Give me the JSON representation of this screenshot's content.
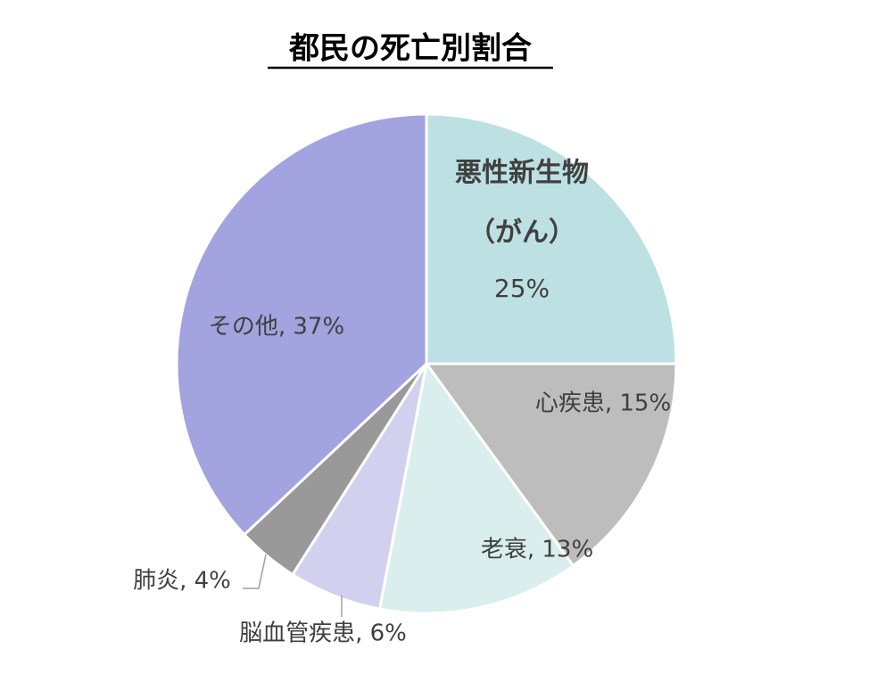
{
  "chart_data": {
    "type": "pie",
    "title": "都民の死亡別割合",
    "values": [
      25,
      15,
      13,
      6,
      4,
      37
    ],
    "labels": [
      [
        "悪性新生物",
        "（がん）",
        "25%"
      ],
      [
        "心疾患, 15%"
      ],
      [
        "老衰, 13%"
      ],
      [
        "脳血管疾患, 6%"
      ],
      [
        "肺炎, 4%"
      ],
      [
        "その他, 37%"
      ]
    ],
    "colors": [
      "#bde0e3",
      "#bdbdbd",
      "#daeeee",
      "#d1d1ef",
      "#999999",
      "#a3a3df"
    ]
  }
}
